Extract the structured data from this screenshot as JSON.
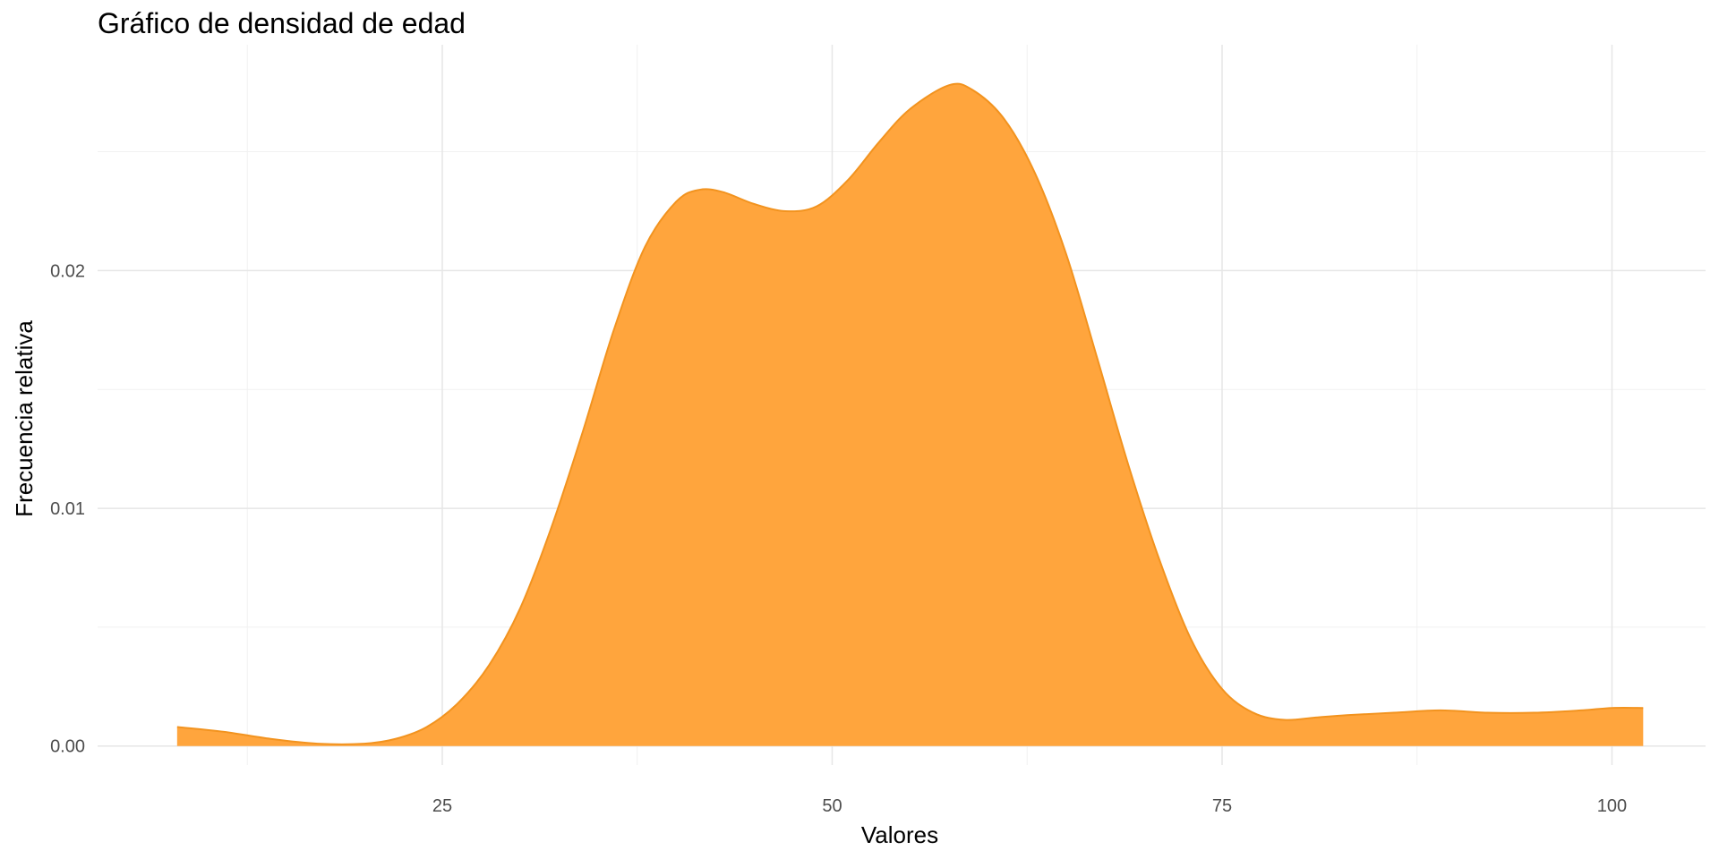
{
  "chart_data": {
    "type": "area",
    "title": "Gráfico de densidad de edad",
    "xlabel": "Valores",
    "ylabel": "Frecuencia relativa",
    "xlim": [
      2.9,
      106
    ],
    "ylim": [
      -0.0008,
      0.0295
    ],
    "x_ticks": [
      25,
      50,
      75,
      100
    ],
    "x_tick_labels": [
      "25",
      "50",
      "75",
      "100"
    ],
    "y_ticks": [
      0,
      0.01,
      0.02
    ],
    "y_tick_labels": [
      "0.00",
      "0.01",
      "0.02"
    ],
    "grid": true,
    "legend": "none",
    "fill_color": "#FFA53D",
    "line_color": "#F2931F",
    "series": [
      {
        "x": [
          8,
          11,
          14,
          17,
          20,
          22,
          24,
          26,
          28,
          30,
          32,
          34,
          36,
          38,
          40,
          41.5,
          43,
          45,
          47,
          49,
          51,
          53,
          55,
          57.5,
          59,
          61,
          63,
          65,
          67,
          69,
          71,
          73,
          75,
          77,
          79,
          81,
          83,
          86,
          89,
          92,
          95,
          98,
          100,
          102
        ],
        "y": [
          0.0008,
          0.0006,
          0.0003,
          0.0001,
          0.0001,
          0.0003,
          0.0008,
          0.0018,
          0.0034,
          0.0058,
          0.0092,
          0.0132,
          0.0175,
          0.021,
          0.0229,
          0.0234,
          0.0233,
          0.0228,
          0.0225,
          0.0227,
          0.0238,
          0.0254,
          0.0268,
          0.0278,
          0.0276,
          0.0264,
          0.0241,
          0.0207,
          0.0163,
          0.0118,
          0.0078,
          0.0045,
          0.0024,
          0.0014,
          0.0011,
          0.0012,
          0.0013,
          0.0014,
          0.0015,
          0.0014,
          0.0014,
          0.0015,
          0.0016,
          0.0016
        ]
      }
    ]
  }
}
